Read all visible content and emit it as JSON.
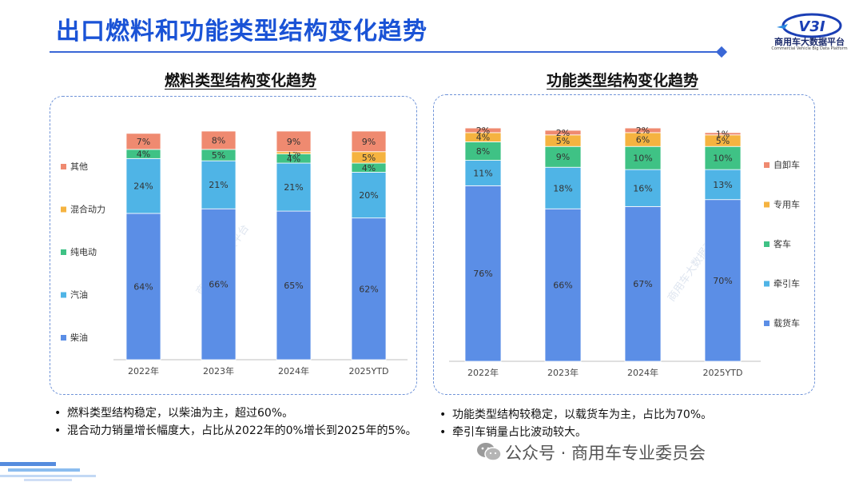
{
  "page": {
    "title": "出口燃料和功能类型结构变化趋势",
    "logo_text": "商用车大数据平台",
    "logo_sub": "Commercial Vehicle Big Data Platform",
    "logo_mark": "V3I",
    "footer": "公众号 · 商用车专业委员会",
    "watermark": "商用车大数据平台",
    "colors": {
      "title": "#1a53d6",
      "diesel": "#5b8ee6",
      "gasoline": "#4fb4e6",
      "electric": "#3fc285",
      "hybrid": "#f5b340",
      "other": "#ef8a70"
    }
  },
  "bullets_left": [
    "燃料类型结构稳定，以柴油为主，超过60%。",
    "混合动力销量增长幅度大，占比从2022年的0%增长到2025年的5%。"
  ],
  "bullets_right": [
    "功能类型结构较稳定，以载货车为主，占比为70%。",
    "牵引车销量占比波动较大。"
  ],
  "chart_data": [
    {
      "type": "bar",
      "stacked": true,
      "percent": true,
      "title": "燃料类型结构变化趋势",
      "categories": [
        "2022年",
        "2023年",
        "2024年",
        "2025YTD"
      ],
      "series": [
        {
          "name": "柴油",
          "color": "#5b8ee6",
          "values": [
            64,
            66,
            65,
            62
          ]
        },
        {
          "name": "汽油",
          "color": "#4fb4e6",
          "values": [
            24,
            21,
            21,
            20
          ]
        },
        {
          "name": "纯电动",
          "color": "#3fc285",
          "values": [
            4,
            5,
            4,
            4
          ]
        },
        {
          "name": "混合动力",
          "color": "#f5b340",
          "values": [
            0,
            0,
            1,
            5
          ]
        },
        {
          "name": "其他",
          "color": "#ef8a70",
          "values": [
            7,
            8,
            9,
            9
          ]
        }
      ],
      "legend_position": "left",
      "ylim": [
        0,
        100
      ]
    },
    {
      "type": "bar",
      "stacked": true,
      "percent": true,
      "title": "功能类型结构变化趋势",
      "categories": [
        "2022年",
        "2023年",
        "2024年",
        "2025YTD"
      ],
      "series": [
        {
          "name": "载货车",
          "color": "#5b8ee6",
          "values": [
            76,
            66,
            67,
            70
          ]
        },
        {
          "name": "牵引车",
          "color": "#4fb4e6",
          "values": [
            11,
            18,
            16,
            13
          ]
        },
        {
          "name": "客车",
          "color": "#3fc285",
          "values": [
            8,
            9,
            10,
            10
          ]
        },
        {
          "name": "专用车",
          "color": "#f5b340",
          "values": [
            4,
            5,
            6,
            5
          ]
        },
        {
          "name": "自卸车",
          "color": "#ef8a70",
          "values": [
            2,
            2,
            2,
            1
          ]
        }
      ],
      "legend_position": "right",
      "ylim": [
        0,
        100
      ]
    }
  ]
}
